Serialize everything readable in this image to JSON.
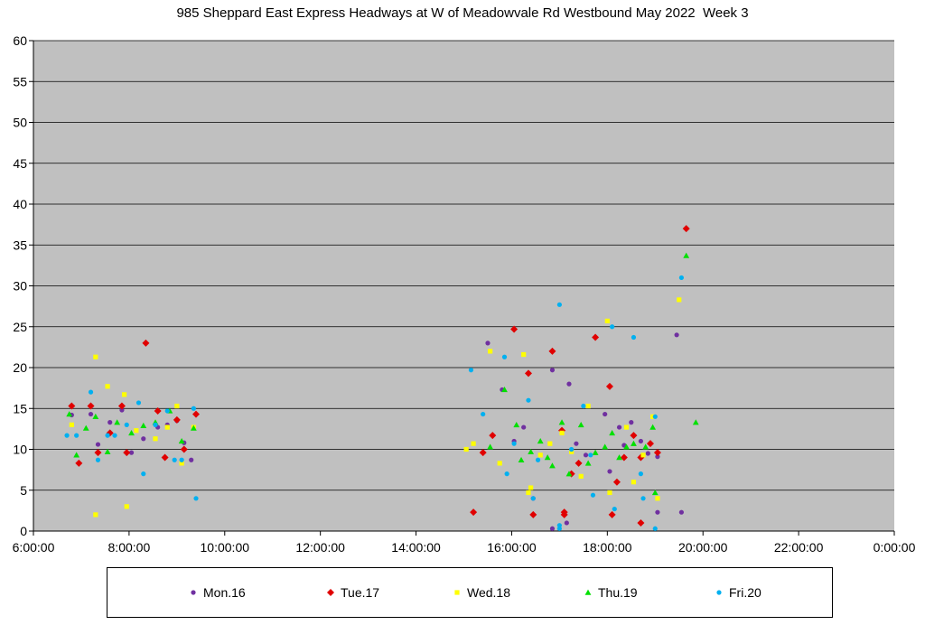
{
  "chart_data": {
    "type": "scatter",
    "title": "985 Sheppard East Express Headways at W of Meadowvale Rd Westbound May 2022  Week 3",
    "xlabel": "",
    "ylabel": "",
    "x_ticks": [
      "6:00:00",
      "8:00:00",
      "10:00:00",
      "12:00:00",
      "14:00:00",
      "16:00:00",
      "18:00:00",
      "20:00:00",
      "22:00:00",
      "0:00:00"
    ],
    "xlim_hours": [
      6,
      24
    ],
    "y_ticks": [
      "0",
      "5",
      "10",
      "15",
      "20",
      "25",
      "30",
      "35",
      "40",
      "45",
      "50",
      "55",
      "60"
    ],
    "ylim": [
      0,
      60
    ],
    "grid": "horizontal",
    "legend_position": "bottom",
    "plot_background": "#c0c0c0",
    "series": [
      {
        "name": "Mon.16",
        "color": "#7030a0",
        "marker": "circle",
        "x_hours": [
          6.8,
          7.2,
          7.35,
          7.6,
          7.85,
          8.05,
          8.3,
          8.6,
          8.8,
          9.0,
          9.15,
          9.3,
          15.5,
          15.8,
          16.05,
          16.25,
          16.45,
          16.85,
          17.2,
          17.35,
          17.55,
          17.95,
          18.05,
          18.25,
          18.35,
          18.5,
          18.7,
          18.85,
          19.05,
          19.45,
          19.05,
          19.55,
          16.85,
          17.15
        ],
        "y": [
          14.2,
          14.3,
          10.6,
          13.3,
          14.8,
          9.6,
          11.3,
          12.7,
          13.0,
          13.5,
          10.8,
          8.7,
          23.0,
          17.3,
          11.0,
          12.7,
          4.0,
          19.7,
          18.0,
          10.7,
          9.3,
          14.3,
          7.3,
          12.7,
          10.5,
          13.3,
          11.0,
          9.5,
          9.1,
          24.0,
          2.3,
          2.3,
          0.3,
          1.0
        ]
      },
      {
        "name": "Tue.17",
        "color": "#e00000",
        "marker": "diamond",
        "x_hours": [
          6.8,
          6.95,
          7.2,
          7.35,
          7.6,
          7.85,
          7.95,
          8.35,
          8.6,
          8.75,
          9.0,
          9.15,
          9.4,
          15.2,
          15.4,
          15.6,
          16.05,
          16.35,
          16.45,
          16.85,
          17.05,
          17.1,
          17.25,
          17.4,
          17.75,
          18.05,
          18.1,
          18.2,
          18.35,
          18.55,
          18.7,
          18.7,
          18.9,
          19.05,
          19.65,
          17.1
        ],
        "y": [
          15.3,
          8.3,
          15.3,
          9.6,
          12.0,
          15.3,
          9.6,
          23.0,
          14.7,
          9.0,
          13.6,
          10.0,
          14.3,
          2.3,
          9.6,
          11.7,
          24.7,
          19.3,
          2.0,
          22.0,
          12.3,
          2.3,
          7.0,
          8.3,
          23.7,
          17.7,
          2.0,
          6.0,
          9.0,
          11.7,
          9.0,
          1.0,
          10.7,
          9.6,
          37.0,
          2.0
        ]
      },
      {
        "name": "Wed.18",
        "color": "#ffff00",
        "marker": "square",
        "x_hours": [
          6.8,
          7.3,
          7.3,
          7.55,
          7.9,
          7.95,
          8.15,
          8.55,
          8.8,
          9.0,
          9.1,
          9.35,
          15.05,
          15.2,
          15.55,
          15.75,
          16.25,
          16.35,
          16.4,
          16.6,
          16.8,
          17.05,
          17.25,
          17.45,
          17.6,
          18.0,
          18.05,
          18.4,
          18.55,
          18.75,
          18.95,
          19.05,
          19.5
        ],
        "y": [
          13.0,
          21.3,
          2.0,
          17.7,
          16.7,
          3.0,
          12.3,
          11.3,
          12.7,
          15.3,
          8.3,
          12.7,
          10.0,
          10.7,
          22.0,
          8.3,
          21.6,
          4.7,
          5.3,
          9.3,
          10.7,
          12.0,
          9.7,
          6.7,
          15.3,
          25.7,
          4.7,
          12.7,
          6.0,
          9.3,
          14.0,
          4.0,
          28.3
        ]
      },
      {
        "name": "Thu.19",
        "color": "#00e000",
        "marker": "triangle",
        "x_hours": [
          6.75,
          6.9,
          7.1,
          7.3,
          7.55,
          7.75,
          8.05,
          8.3,
          8.55,
          8.85,
          9.1,
          9.35,
          15.55,
          15.85,
          16.1,
          16.2,
          16.4,
          16.6,
          16.75,
          16.85,
          17.05,
          17.2,
          17.45,
          17.6,
          17.75,
          17.95,
          18.1,
          18.25,
          18.4,
          18.55,
          18.8,
          18.95,
          19.0,
          19.65,
          19.85
        ],
        "y": [
          14.3,
          9.3,
          12.6,
          14.0,
          9.7,
          13.3,
          12.0,
          12.9,
          13.3,
          14.7,
          11.0,
          12.6,
          10.3,
          17.3,
          13.0,
          8.7,
          9.7,
          11.0,
          9.0,
          8.0,
          13.3,
          7.0,
          13.0,
          8.3,
          9.6,
          10.3,
          12.0,
          9.0,
          10.3,
          10.7,
          10.3,
          12.7,
          4.7,
          33.7,
          13.3
        ]
      },
      {
        "name": "Fri.20",
        "color": "#00b0f0",
        "marker": "circle",
        "x_hours": [
          6.7,
          6.9,
          7.2,
          7.35,
          7.55,
          7.7,
          7.95,
          8.2,
          8.3,
          8.55,
          8.8,
          8.95,
          9.1,
          9.35,
          9.4,
          15.15,
          15.4,
          15.85,
          15.9,
          16.05,
          16.35,
          16.45,
          16.55,
          17.0,
          17.0,
          17.0,
          17.25,
          17.5,
          17.7,
          17.65,
          18.1,
          18.15,
          18.55,
          18.7,
          18.75,
          19.0,
          19.0,
          19.55
        ],
        "y": [
          11.7,
          11.7,
          17.0,
          8.7,
          11.7,
          11.7,
          13.0,
          15.7,
          7.0,
          13.0,
          14.7,
          8.7,
          8.7,
          15.0,
          4.0,
          19.7,
          14.3,
          21.3,
          7.0,
          10.7,
          16.0,
          4.0,
          8.7,
          27.7,
          0.7,
          0.3,
          10.0,
          15.3,
          4.4,
          9.3,
          25.0,
          2.7,
          23.7,
          7.0,
          4.0,
          14.0,
          0.3,
          31.0
        ]
      }
    ]
  }
}
